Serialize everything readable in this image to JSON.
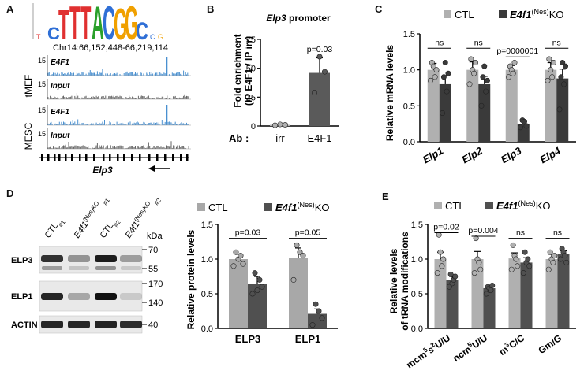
{
  "panels": {
    "A": "A",
    "B": "B",
    "C": "C",
    "D": "D",
    "E": "E"
  },
  "panel_a": {
    "coord": "Chr14:66,152,448-66,219,114",
    "motif_letters": [
      "C",
      "T",
      "T",
      "T",
      "A",
      "C",
      "G",
      "G",
      "C"
    ],
    "motif_colors": {
      "C": "#2f6fd6",
      "T": "#e03030",
      "A": "#2aa02a",
      "G": "#f0a000"
    },
    "groups": [
      "tMEF",
      "MESC"
    ],
    "tracks": [
      {
        "label": "E4F1",
        "scale": "15",
        "color": "#4a90d0",
        "peak": 0.92
      },
      {
        "label": "Input",
        "scale": "15",
        "color": "#666666",
        "peak": 0.2
      },
      {
        "label": "E4F1",
        "scale": "15",
        "color": "#4a90d0",
        "peak": 1.0
      },
      {
        "label": "Input",
        "scale": "15",
        "color": "#666666",
        "peak": 0.2
      }
    ],
    "gene": "Elp3"
  },
  "panel_d_blot": {
    "lanes": [
      "CTL#1",
      "E4f1(Nes)KO #1",
      "CTL#2",
      "E4f1(Nes)KO #2"
    ],
    "rows": [
      "ELP3",
      "ELP1",
      "ACTIN"
    ],
    "kda_header": "kDa",
    "kda": [
      "70",
      "55",
      "170",
      "140",
      "40"
    ]
  },
  "chart_data": [
    {
      "id": "B",
      "type": "bar",
      "title": "Elp3 promoter",
      "ylabel": "Fold enrichment\n(IP E4F1 / IP irr)",
      "xlabel": "Ab :",
      "categories": [
        "irr",
        "E4F1"
      ],
      "values": [
        1,
        46
      ],
      "errors": [
        0.5,
        13
      ],
      "points": [
        [
          0.6,
          1.4,
          1.0
        ],
        [
          29,
          60,
          47
        ]
      ],
      "ylim": [
        0,
        75
      ],
      "yticks": [
        0,
        25,
        50,
        75
      ],
      "annotations": [
        {
          "text": "p=0.03"
        }
      ],
      "colors": [
        "#b0b0b0",
        "#5a5a5a"
      ]
    },
    {
      "id": "C",
      "type": "bar",
      "ylabel": "Relative mRNA levels",
      "categories": [
        "Elp1",
        "Elp2",
        "Elp3",
        "Elp4"
      ],
      "series": [
        {
          "name": "CTL",
          "values": [
            1.0,
            1.0,
            1.0,
            1.0
          ],
          "errors": [
            0.09,
            0.11,
            0.06,
            0.1
          ],
          "points": [
            [
              0.85,
              1.1,
              1.05,
              0.9,
              1.0
            ],
            [
              0.8,
              1.15,
              1.0,
              0.95,
              1.1
            ],
            [
              0.9,
              1.05,
              1.0,
              0.95,
              1.1
            ],
            [
              0.85,
              1.15,
              1.0,
              0.9,
              1.1
            ]
          ]
        },
        {
          "name": "E4f1(Nes)KO",
          "values": [
            0.8,
            0.8,
            0.25,
            0.88
          ],
          "errors": [
            0.12,
            0.11,
            0.03,
            0.13
          ],
          "points": [
            [
              0.4,
              0.9,
              1.1,
              0.7,
              0.95
            ],
            [
              0.5,
              0.9,
              1.05,
              0.7,
              0.85
            ],
            [
              0.2,
              0.3,
              0.28,
              0.22
            ],
            [
              0.45,
              0.9,
              1.1,
              0.8,
              1.05
            ]
          ]
        }
      ],
      "ylim": [
        0,
        1.5
      ],
      "yticks": [
        0,
        0.5,
        1.0,
        1.5
      ],
      "annotations": [
        "ns",
        "ns",
        "p=0000001",
        "ns"
      ],
      "colors": [
        "#b0b0b0",
        "#3a3a3a"
      ],
      "legend": "top"
    },
    {
      "id": "D",
      "type": "bar",
      "ylabel": "Relative protein levels",
      "categories": [
        "ELP3",
        "ELP1"
      ],
      "series": [
        {
          "name": "CTL",
          "values": [
            1.0,
            1.02
          ],
          "errors": [
            0.07,
            0.14
          ],
          "points": [
            [
              0.9,
              1.1,
              1.0,
              1.05,
              0.93
            ],
            [
              0.7,
              1.2,
              1.1,
              1.05
            ]
          ]
        },
        {
          "name": "E4f1(Nes)KO",
          "values": [
            0.64,
            0.21
          ],
          "errors": [
            0.11,
            0.07
          ],
          "points": [
            [
              0.5,
              0.8,
              0.55,
              0.7,
              0.6
            ],
            [
              0.05,
              0.35,
              0.25,
              0.15
            ]
          ]
        }
      ],
      "ylim": [
        0,
        1.5
      ],
      "yticks": [
        0.0,
        0.5,
        1.0,
        1.5
      ],
      "annotations": [
        "p=0.03",
        "p=0.05"
      ],
      "colors": [
        "#a8a8a8",
        "#505050"
      ],
      "legend": "top"
    },
    {
      "id": "E",
      "type": "bar",
      "ylabel": "Relative levels\nof tRNA modifications",
      "categories": [
        "mcm5s2U/U",
        "ncm5U/U",
        "m3C/C",
        "Gm/G"
      ],
      "series": [
        {
          "name": "CTL",
          "values": [
            1.0,
            1.0,
            1.01,
            1.0
          ],
          "errors": [
            0.1,
            0.11,
            0.08,
            0.07
          ],
          "points": [
            [
              0.8,
              1.35,
              1.1,
              0.9,
              1.0
            ],
            [
              0.8,
              1.3,
              1.0,
              0.95,
              0.85
            ],
            [
              0.85,
              1.2,
              1.05,
              1.0,
              0.9
            ],
            [
              0.85,
              1.1,
              1.0,
              0.95,
              1.05
            ]
          ]
        },
        {
          "name": "E4f1(Nes)KO",
          "values": [
            0.7,
            0.58,
            0.95,
            1.07
          ],
          "errors": [
            0.05,
            0.03,
            0.07,
            0.05
          ],
          "points": [
            [
              0.6,
              0.78,
              0.65,
              0.7,
              0.75
            ],
            [
              0.5,
              0.6,
              0.58,
              0.55,
              0.62
            ],
            [
              0.8,
              1.1,
              0.95,
              1.0,
              0.9
            ],
            [
              1.0,
              1.15,
              1.1,
              1.05,
              0.95
            ]
          ]
        }
      ],
      "ylim": [
        0,
        1.5
      ],
      "yticks": [
        0.0,
        0.5,
        1.0,
        1.5
      ],
      "annotations": [
        "p=0.02",
        "p=0.004",
        "ns",
        "ns"
      ],
      "colors": [
        "#b0b0b0",
        "#505050"
      ],
      "legend": "top"
    }
  ]
}
